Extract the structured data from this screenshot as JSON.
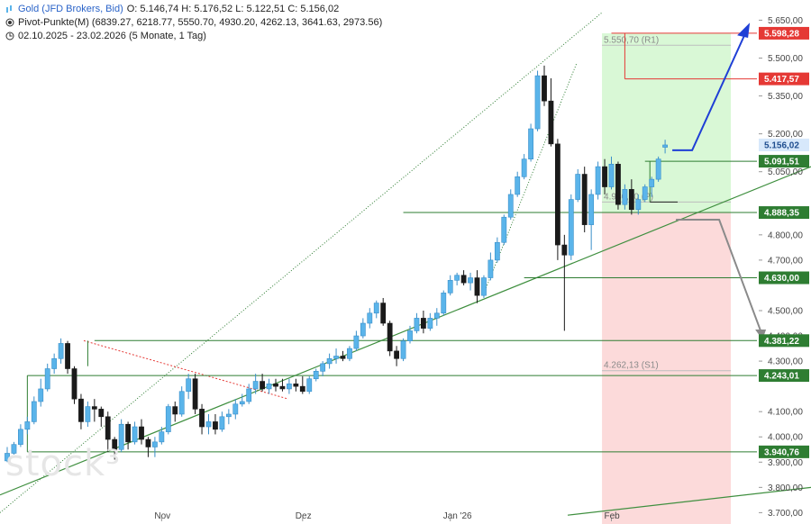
{
  "header": {
    "symbol_line": "Gold (JFD Brokers, Bid)",
    "ohlc": "O: 5.146,74  H: 5.176,52  L: 5.122,51  C: 5.156,02",
    "pivot_line": "Pivot-Punkte(M)  (6839.27, 6218.77, 5550.70, 4930.20, 4262.13, 3641.63, 2973.56)",
    "range_line": "02.10.2025 - 23.02.2026  (5 Monate, 1 Tag)"
  },
  "watermark": "stock3",
  "colors": {
    "up": "#5ab4ea",
    "down": "#1a1a1a",
    "green_line": "#2e7d32",
    "red_line": "#e53935",
    "blue_arrow": "#1f3fd6",
    "grey_arrow": "#8a8a8a",
    "green_zone": "#d9f8d6",
    "red_zone": "#fcdada"
  },
  "chart_data": {
    "type": "candlestick",
    "title": "Gold (JFD Brokers, Bid)",
    "ylim": [
      3680,
      5680
    ],
    "y_ticks": [
      "5.650,00",
      "5.500,00",
      "5.350,00",
      "5.200,00",
      "5.050,00",
      "4.800,00",
      "4.700,00",
      "4.500,00",
      "4.400,00",
      "4.300,00",
      "4.100,00",
      "4.000,00",
      "3.900,00",
      "3.800,00",
      "3.700,00"
    ],
    "y_tick_values": [
      5650,
      5500,
      5350,
      5200,
      5050,
      4800,
      4700,
      4500,
      4400,
      4300,
      4100,
      4000,
      3900,
      3800,
      3700
    ],
    "x_ticks": [
      "Nov",
      "Dez",
      "Jan '26",
      "Feb"
    ],
    "x_tick_index": [
      23,
      44,
      66,
      90
    ],
    "candles": [
      [
        3905,
        3960,
        3900,
        3935
      ],
      [
        3935,
        3980,
        3930,
        3970
      ],
      [
        3970,
        4050,
        3960,
        4030
      ],
      [
        4030,
        4080,
        4010,
        4060
      ],
      [
        4060,
        4160,
        4050,
        4140
      ],
      [
        4140,
        4230,
        4120,
        4190
      ],
      [
        4190,
        4290,
        4180,
        4270
      ],
      [
        4270,
        4330,
        4250,
        4310
      ],
      [
        4310,
        4390,
        4290,
        4370
      ],
      [
        4370,
        4380,
        4250,
        4270
      ],
      [
        4270,
        4280,
        4130,
        4150
      ],
      [
        4150,
        4170,
        4030,
        4060
      ],
      [
        4060,
        4140,
        4040,
        4120
      ],
      [
        4120,
        4150,
        4060,
        4110
      ],
      [
        4110,
        4120,
        4040,
        4080
      ],
      [
        4080,
        4100,
        3940,
        3990
      ],
      [
        3990,
        4000,
        3910,
        3950
      ],
      [
        3950,
        4070,
        3940,
        4050
      ],
      [
        4050,
        4060,
        3950,
        3980
      ],
      [
        3980,
        4060,
        3970,
        4040
      ],
      [
        4040,
        4070,
        3970,
        3990
      ],
      [
        3990,
        4000,
        3920,
        3960
      ],
      [
        3960,
        4000,
        3920,
        3980
      ],
      [
        3980,
        4040,
        3970,
        4020
      ],
      [
        4020,
        4130,
        4010,
        4120
      ],
      [
        4120,
        4140,
        4060,
        4090
      ],
      [
        4090,
        4200,
        4080,
        4180
      ],
      [
        4180,
        4250,
        4150,
        4230
      ],
      [
        4230,
        4250,
        4090,
        4110
      ],
      [
        4110,
        4130,
        4010,
        4040
      ],
      [
        4040,
        4090,
        4010,
        4060
      ],
      [
        4060,
        4090,
        4010,
        4030
      ],
      [
        4030,
        4100,
        4020,
        4080
      ],
      [
        4080,
        4110,
        4050,
        4090
      ],
      [
        4090,
        4150,
        4070,
        4130
      ],
      [
        4130,
        4170,
        4120,
        4140
      ],
      [
        4140,
        4210,
        4130,
        4190
      ],
      [
        4190,
        4250,
        4170,
        4220
      ],
      [
        4220,
        4250,
        4180,
        4190
      ],
      [
        4190,
        4230,
        4170,
        4210
      ],
      [
        4210,
        4230,
        4180,
        4200
      ],
      [
        4200,
        4230,
        4180,
        4190
      ],
      [
        4190,
        4230,
        4170,
        4210
      ],
      [
        4210,
        4230,
        4180,
        4200
      ],
      [
        4200,
        4240,
        4170,
        4180
      ],
      [
        4180,
        4240,
        4170,
        4230
      ],
      [
        4230,
        4270,
        4220,
        4260
      ],
      [
        4260,
        4300,
        4240,
        4290
      ],
      [
        4290,
        4330,
        4270,
        4310
      ],
      [
        4310,
        4350,
        4290,
        4320
      ],
      [
        4320,
        4340,
        4300,
        4310
      ],
      [
        4310,
        4360,
        4300,
        4350
      ],
      [
        4350,
        4420,
        4340,
        4400
      ],
      [
        4400,
        4470,
        4390,
        4450
      ],
      [
        4450,
        4510,
        4430,
        4490
      ],
      [
        4490,
        4540,
        4470,
        4530
      ],
      [
        4530,
        4550,
        4440,
        4450
      ],
      [
        4450,
        4460,
        4320,
        4340
      ],
      [
        4340,
        4360,
        4280,
        4310
      ],
      [
        4310,
        4390,
        4300,
        4380
      ],
      [
        4380,
        4440,
        4370,
        4420
      ],
      [
        4420,
        4490,
        4410,
        4470
      ],
      [
        4470,
        4500,
        4410,
        4430
      ],
      [
        4430,
        4490,
        4420,
        4470
      ],
      [
        4470,
        4510,
        4440,
        4490
      ],
      [
        4490,
        4580,
        4480,
        4570
      ],
      [
        4570,
        4640,
        4560,
        4620
      ],
      [
        4620,
        4650,
        4600,
        4640
      ],
      [
        4640,
        4660,
        4600,
        4610
      ],
      [
        4610,
        4650,
        4580,
        4630
      ],
      [
        4630,
        4660,
        4530,
        4560
      ],
      [
        4560,
        4640,
        4550,
        4630
      ],
      [
        4630,
        4730,
        4620,
        4700
      ],
      [
        4700,
        4790,
        4690,
        4770
      ],
      [
        4770,
        4880,
        4760,
        4870
      ],
      [
        4870,
        4980,
        4860,
        4960
      ],
      [
        4960,
        5050,
        4950,
        5030
      ],
      [
        5030,
        5120,
        5020,
        5100
      ],
      [
        5100,
        5240,
        5090,
        5220
      ],
      [
        5220,
        5450,
        5210,
        5430
      ],
      [
        5430,
        5470,
        5310,
        5330
      ],
      [
        5330,
        5420,
        5150,
        5160
      ],
      [
        5160,
        5180,
        4700,
        4760
      ],
      [
        4760,
        4800,
        4420,
        4720
      ],
      [
        4720,
        4960,
        4700,
        4940
      ],
      [
        4940,
        5060,
        4930,
        5040
      ],
      [
        5040,
        5070,
        4810,
        4840
      ],
      [
        4840,
        4980,
        4740,
        4960
      ],
      [
        4960,
        5090,
        4940,
        5070
      ],
      [
        5070,
        5100,
        4960,
        4990
      ],
      [
        4990,
        5110,
        4980,
        5080
      ],
      [
        5080,
        5090,
        4900,
        4920
      ],
      [
        4920,
        5000,
        4900,
        4980
      ],
      [
        4980,
        5020,
        4880,
        4900
      ],
      [
        4900,
        4960,
        4880,
        4940
      ],
      [
        4940,
        5000,
        4930,
        4990
      ],
      [
        4990,
        5030,
        4950,
        5020
      ],
      [
        5020,
        5110,
        5010,
        5100
      ],
      [
        5146.74,
        5176.52,
        5122.51,
        5156.02
      ]
    ],
    "levels": [
      {
        "name": "R1 5.550,70",
        "value": 5550.7,
        "color": "#e53935",
        "label": "5.598,28",
        "label_value": 5598.28,
        "line_value": 5598.28,
        "start": 90
      },
      {
        "name": "R",
        "value": 5417.57,
        "color": "#e53935",
        "label": "5.417,57",
        "start": 92
      },
      {
        "name": "S",
        "value": 5091.51,
        "color": "#2e7d32",
        "label": "5.091,51",
        "start": 95
      },
      {
        "name": "S",
        "value": 4888.35,
        "color": "#2e7d32",
        "label": "4.888,35",
        "start": 59
      },
      {
        "name": "S",
        "value": 4630.0,
        "color": "#2e7d32",
        "label": "4.630,00",
        "start": 77
      },
      {
        "name": "S",
        "value": 4381.22,
        "color": "#2e7d32",
        "label": "4.381,22",
        "start": 13
      },
      {
        "name": "S",
        "value": 4243.01,
        "color": "#2e7d32",
        "label": "4.243,01",
        "start": 3
      },
      {
        "name": "S",
        "value": 3940.76,
        "color": "#2e7d32",
        "label": "3.940,76",
        "start": 3
      }
    ],
    "pivot_labels": [
      {
        "text": "5.550,70 (R1)",
        "value": 5550.7
      },
      {
        "text": "4.930,20 (P)",
        "value": 4930.2
      },
      {
        "text": "4.262,13 (S1)",
        "value": 4262.13
      }
    ],
    "current_label": {
      "text": "5.156,02",
      "value": 5156.02,
      "color": "#4a90e2"
    }
  }
}
